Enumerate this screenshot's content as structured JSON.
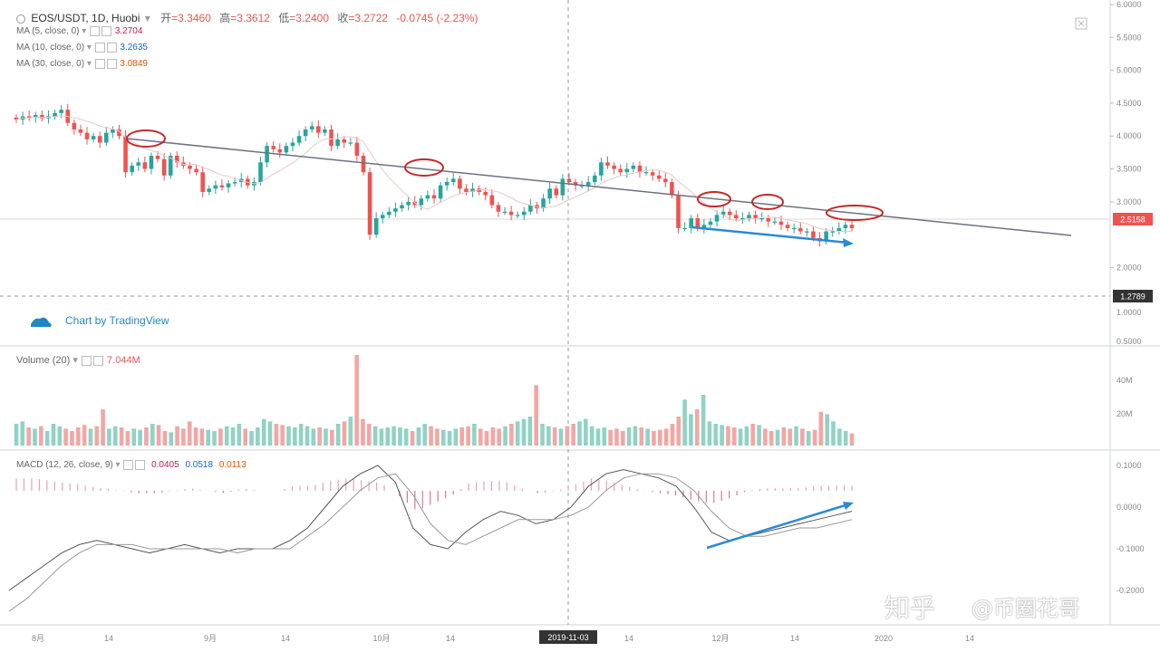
{
  "header": {
    "symbol": "EOS/USDT, 1D, Huobi",
    "open_label": "开",
    "open": "3.3460",
    "high_label": "高",
    "high": "3.3612",
    "low_label": "低",
    "low": "3.2400",
    "close_label": "收",
    "close": "3.2722",
    "change": "-0.0745 (-2.23%)"
  },
  "indicators": [
    {
      "label": "MA (5, close, 0)",
      "value": "3.2704",
      "color": "#c2185b"
    },
    {
      "label": "MA (10, close, 0)",
      "value": "3.2635",
      "color": "#1565c0"
    },
    {
      "label": "MA (30, close, 0)",
      "value": "3.0849",
      "color": "#e65100"
    }
  ],
  "volume_legend": {
    "label": "Volume (20)",
    "value": "7.044M"
  },
  "macd_legend": {
    "label": "MACD (12, 26, close, 9)",
    "hist": "0.0405",
    "macd": "0.0518",
    "signal": "0.0113"
  },
  "branding": "Chart by TradingView",
  "watermark": {
    "zhihu": "知乎",
    "author": "@币圈花哥"
  },
  "colors": {
    "up": "#26a69a",
    "down": "#ef5350",
    "up_light": "#8fd3c4",
    "down_light": "#f3a6a4",
    "annotation_blue": "#2b8ad8",
    "annotation_red": "#c62828"
  },
  "chart_data": [
    {
      "type": "candlestick",
      "title": "EOS/USDT, 1D, Huobi",
      "ylim": [
        1.8,
        6.0
      ],
      "y_ticks": [
        "6.0000",
        "5.5000",
        "5.0000",
        "4.5000",
        "4.0000",
        "3.5000",
        "3.0000",
        "2.0000"
      ],
      "last_price_tag": "2.5158",
      "crosshair_price_tag": "1.2789",
      "secondary_ticks": [
        "1.0000",
        "0.5000"
      ],
      "close_series": [
        4.25,
        4.3,
        4.28,
        4.32,
        4.27,
        4.3,
        4.35,
        4.4,
        4.2,
        4.1,
        4.05,
        3.95,
        4.0,
        3.9,
        4.05,
        4.1,
        4.0,
        3.45,
        3.55,
        3.6,
        3.5,
        3.7,
        3.65,
        3.4,
        3.7,
        3.6,
        3.55,
        3.5,
        3.45,
        3.15,
        3.2,
        3.25,
        3.22,
        3.28,
        3.3,
        3.35,
        3.25,
        3.3,
        3.6,
        3.85,
        3.8,
        3.75,
        3.85,
        3.9,
        4.0,
        4.1,
        4.15,
        4.05,
        4.1,
        3.85,
        3.95,
        3.9,
        3.9,
        3.7,
        3.45,
        2.5,
        2.75,
        2.8,
        2.85,
        2.9,
        2.95,
        3.0,
        2.95,
        3.05,
        3.1,
        3.05,
        3.25,
        3.3,
        3.35,
        3.2,
        3.15,
        3.2,
        3.15,
        3.1,
        2.95,
        2.85,
        2.85,
        2.8,
        2.8,
        2.85,
        2.95,
        2.9,
        3.05,
        3.2,
        3.1,
        3.35,
        3.3,
        3.25,
        3.25,
        3.3,
        3.4,
        3.6,
        3.55,
        3.5,
        3.45,
        3.5,
        3.55,
        3.45,
        3.45,
        3.4,
        3.35,
        3.3,
        3.1,
        2.6,
        2.6,
        2.75,
        2.6,
        2.65,
        2.7,
        2.8,
        2.85,
        2.8,
        2.75,
        2.75,
        2.8,
        2.75,
        2.75,
        2.7,
        2.7,
        2.65,
        2.6,
        2.6,
        2.55,
        2.55,
        2.45,
        2.4,
        2.55,
        2.55,
        2.6,
        2.65,
        2.6
      ]
    },
    {
      "type": "bar",
      "title": "Volume (20)",
      "y_ticks": [
        "40M",
        "20M"
      ],
      "note": "volume histogram, relative heights",
      "values": [
        18,
        20,
        15,
        14,
        16,
        12,
        18,
        16,
        14,
        12,
        15,
        17,
        14,
        16,
        30,
        14,
        16,
        15,
        12,
        14,
        13,
        15,
        18,
        17,
        12,
        11,
        16,
        14,
        20,
        15,
        14,
        13,
        12,
        14,
        16,
        15,
        18,
        14,
        12,
        15,
        22,
        20,
        18,
        17,
        16,
        15,
        18,
        16,
        14,
        15,
        14,
        13,
        18,
        20,
        24,
        75,
        22,
        18,
        16,
        14,
        15,
        16,
        15,
        14,
        12,
        15,
        18,
        16,
        14,
        13,
        12,
        14,
        15,
        16,
        18,
        14,
        12,
        15,
        14,
        16,
        18,
        20,
        22,
        24,
        50,
        18,
        16,
        15,
        14,
        16,
        18,
        20,
        22,
        16,
        14,
        15,
        13,
        14,
        12,
        15,
        16,
        15,
        14,
        12,
        13,
        14,
        18,
        24,
        38,
        26,
        30,
        42,
        20,
        18,
        17,
        16,
        15,
        14,
        16,
        18,
        17,
        14,
        12,
        13,
        15,
        14,
        16,
        14,
        12,
        13,
        28,
        26,
        20,
        14,
        12,
        10
      ]
    },
    {
      "type": "line",
      "title": "MACD (12, 26, close, 9)",
      "y_ticks": [
        "0.1000",
        "0.0000",
        "-0.1000",
        "-0.2000"
      ],
      "series": [
        {
          "name": "MACD",
          "values": [
            -0.2,
            -0.17,
            -0.14,
            -0.11,
            -0.09,
            -0.08,
            -0.09,
            -0.1,
            -0.11,
            -0.1,
            -0.09,
            -0.1,
            -0.11,
            -0.1,
            -0.1,
            -0.1,
            -0.08,
            -0.05,
            0.0,
            0.05,
            0.08,
            0.1,
            0.06,
            -0.05,
            -0.09,
            -0.1,
            -0.06,
            -0.03,
            -0.01,
            -0.02,
            -0.04,
            -0.03,
            0.0,
            0.05,
            0.08,
            0.09,
            0.08,
            0.07,
            0.05,
            0.0,
            -0.06,
            -0.08,
            -0.07,
            -0.06,
            -0.05,
            -0.04,
            -0.03,
            -0.02,
            -0.01
          ]
        },
        {
          "name": "Signal",
          "values": [
            -0.25,
            -0.22,
            -0.18,
            -0.14,
            -0.11,
            -0.09,
            -0.09,
            -0.09,
            -0.1,
            -0.1,
            -0.1,
            -0.1,
            -0.1,
            -0.11,
            -0.1,
            -0.1,
            -0.1,
            -0.07,
            -0.04,
            0.0,
            0.04,
            0.07,
            0.08,
            0.03,
            -0.04,
            -0.08,
            -0.09,
            -0.07,
            -0.05,
            -0.03,
            -0.03,
            -0.03,
            -0.02,
            0.0,
            0.04,
            0.07,
            0.08,
            0.08,
            0.07,
            0.04,
            -0.01,
            -0.05,
            -0.07,
            -0.07,
            -0.06,
            -0.05,
            -0.05,
            -0.04,
            -0.03
          ]
        }
      ]
    }
  ],
  "time_axis": {
    "labels": [
      "8月",
      "14",
      "9月",
      "14",
      "10月",
      "14",
      "14",
      "12月",
      "14",
      "2020",
      "14"
    ],
    "cursor_label": "2019-11-03"
  }
}
